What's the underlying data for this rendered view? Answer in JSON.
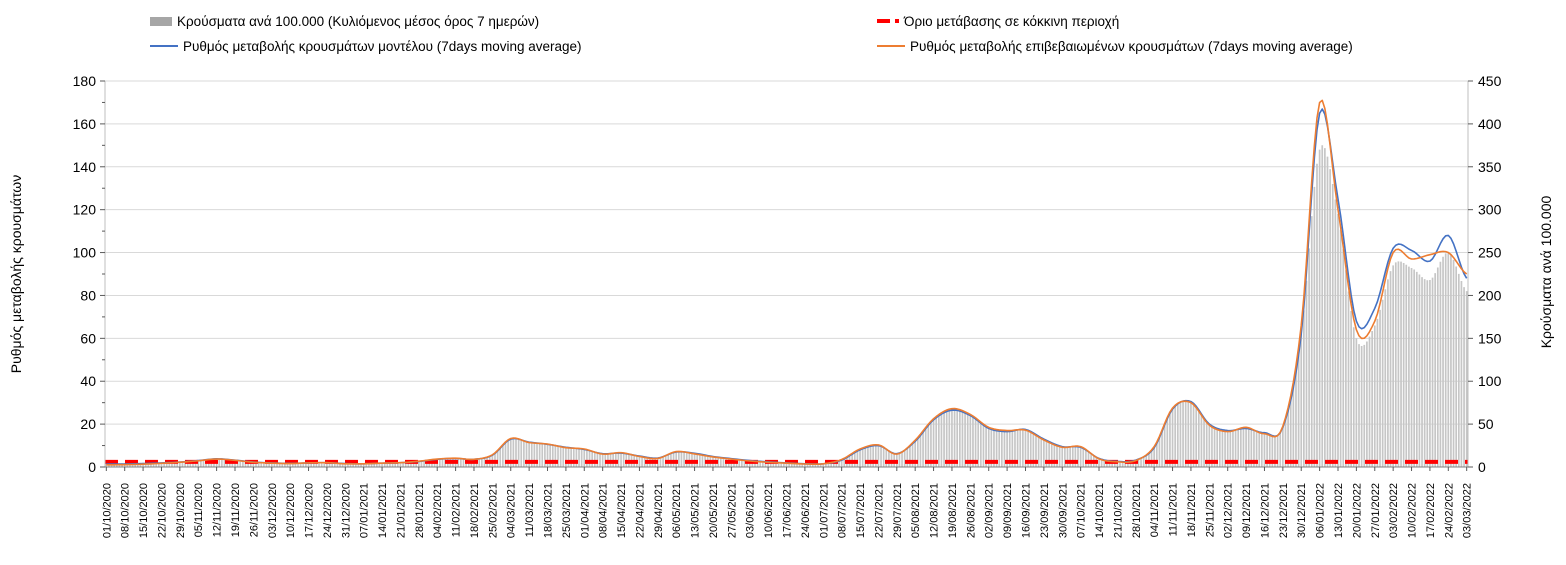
{
  "chart": {
    "legend": [
      {
        "id": "cases",
        "label": "Κρούσματα ανά 100.000 (Κυλιόμενος μέσος όρος 7 ημερών)",
        "swatch": "bar",
        "color": "#a6a6a6"
      },
      {
        "id": "threshold",
        "label": "Όριο μετάβασης σε κόκκινη περιοχή",
        "swatch": "dash",
        "color": "#ff0000"
      },
      {
        "id": "model",
        "label": "Ρυθμός μεταβολής κρουσμάτων μοντέλου (7days moving average)",
        "swatch": "line",
        "color": "#4472c4"
      },
      {
        "id": "confirmed",
        "label": "Ρυθμός μεταβολής επιβεβαιωμένων κρουσμάτων (7days moving average)",
        "swatch": "line",
        "color": "#ed7d31"
      }
    ]
  },
  "chart_data": {
    "type": "combo-bar-line",
    "title": "",
    "x_mode": "daily values, weekly tick labels",
    "grid": "horizontal",
    "left_axis": {
      "title": "Ρυθμός μεταβολής κρουσμάτων",
      "min": 0,
      "max": 180,
      "tick_step": 20,
      "minor_step": 10
    },
    "right_axis": {
      "title": "Κρούσματα ανά 100.000",
      "min": 0,
      "max": 450,
      "tick_step": 50
    },
    "categories": [
      "01/10/2020",
      "08/10/2020",
      "15/10/2020",
      "22/10/2020",
      "29/10/2020",
      "05/11/2020",
      "12/11/2020",
      "19/11/2020",
      "26/11/2020",
      "03/12/2020",
      "10/12/2020",
      "17/12/2020",
      "24/12/2020",
      "31/12/2020",
      "07/01/2021",
      "14/01/2021",
      "21/01/2021",
      "28/01/2021",
      "04/02/2021",
      "11/02/2021",
      "18/02/2021",
      "25/02/2021",
      "04/03/2021",
      "11/03/2021",
      "18/03/2021",
      "25/03/2021",
      "01/04/2021",
      "08/04/2021",
      "15/04/2021",
      "22/04/2021",
      "29/04/2021",
      "06/05/2021",
      "13/05/2021",
      "20/05/2021",
      "27/05/2021",
      "03/06/2021",
      "10/06/2021",
      "17/06/2021",
      "24/06/2021",
      "01/07/2021",
      "08/07/2021",
      "15/07/2021",
      "22/07/2021",
      "29/07/2021",
      "05/08/2021",
      "12/08/2021",
      "19/08/2021",
      "26/08/2021",
      "02/09/2021",
      "09/09/2021",
      "16/09/2021",
      "23/09/2021",
      "30/09/2021",
      "07/10/2021",
      "14/10/2021",
      "21/10/2021",
      "28/10/2021",
      "04/11/2021",
      "11/11/2021",
      "18/11/2021",
      "25/11/2021",
      "02/12/2021",
      "09/12/2021",
      "16/12/2021",
      "23/12/2021",
      "30/12/2021",
      "06/01/2022",
      "13/01/2022",
      "20/01/2022",
      "27/01/2022",
      "03/02/2022",
      "10/02/2022",
      "17/02/2022",
      "24/02/2022",
      "03/03/2022"
    ],
    "series": [
      {
        "name": "Κρούσματα ανά 100.000 (Κυλιόμενος μέσος όρος 7 ημερών)",
        "type": "bar",
        "axis": "right",
        "color": "#c6c6c6",
        "values": [
          4,
          4.5,
          5,
          5.5,
          6.5,
          7.5,
          9,
          8.5,
          6.5,
          5.5,
          5,
          5.5,
          5.5,
          4.5,
          4.5,
          5,
          5.5,
          7,
          9,
          10,
          9,
          14,
          32,
          29,
          27,
          23,
          21,
          16,
          17,
          13,
          11,
          18,
          16,
          12,
          10,
          8,
          6.5,
          5,
          4,
          4,
          8,
          20,
          26,
          16,
          30,
          55,
          66,
          61,
          46,
          43,
          44,
          32,
          24,
          24,
          10,
          7,
          8,
          23,
          68,
          76,
          50,
          43,
          46,
          40,
          47,
          155,
          370,
          295,
          150,
          165,
          235,
          232,
          218,
          250,
          205
        ]
      },
      {
        "name": "Ρυθμός μεταβολής κρουσμάτων μοντέλου (7days moving average)",
        "type": "line",
        "axis": "left",
        "color": "#4472c4",
        "values": [
          1.4,
          1.4,
          1.6,
          1.9,
          2.3,
          3.0,
          3.8,
          3.2,
          2.3,
          1.9,
          1.7,
          1.9,
          2.0,
          1.6,
          1.5,
          1.8,
          2.0,
          2.6,
          3.6,
          4.0,
          3.6,
          5.5,
          13.0,
          11.6,
          10.6,
          9.2,
          8.2,
          6.2,
          6.5,
          5.1,
          4.2,
          7.0,
          6.4,
          4.9,
          3.9,
          3.0,
          2.4,
          1.9,
          1.5,
          1.5,
          3.2,
          8.0,
          10.0,
          6.2,
          12.0,
          22.0,
          26.5,
          24.0,
          18.0,
          16.5,
          17.5,
          13.0,
          9.5,
          9.2,
          4.0,
          2.6,
          3.2,
          9.0,
          27.0,
          30.5,
          20.0,
          17.0,
          18.0,
          16.0,
          18.5,
          62.0,
          165.0,
          125.0,
          68.0,
          74.0,
          102.0,
          101.0,
          96.0,
          108.0,
          88.0
        ]
      },
      {
        "name": "Ρυθμός μεταβολής επιβεβαιωμένων κρουσμάτων (7days moving average)",
        "type": "line",
        "axis": "left",
        "color": "#ed7d31",
        "values": [
          1.0,
          1.1,
          1.3,
          1.7,
          2.2,
          2.9,
          3.7,
          3.1,
          2.2,
          1.8,
          1.6,
          1.9,
          2.0,
          1.5,
          1.5,
          1.8,
          2.0,
          2.7,
          3.7,
          4.1,
          3.6,
          5.7,
          13.3,
          11.4,
          10.7,
          9.0,
          8.4,
          6.0,
          6.7,
          4.9,
          4.0,
          7.2,
          6.1,
          4.7,
          3.7,
          2.8,
          2.2,
          1.8,
          1.4,
          1.5,
          3.5,
          8.4,
          10.3,
          6.0,
          12.5,
          22.5,
          27.2,
          24.5,
          18.5,
          17.0,
          17.2,
          12.6,
          9.2,
          9.5,
          3.8,
          2.4,
          3.0,
          9.5,
          27.5,
          30.0,
          19.5,
          16.5,
          18.5,
          15.5,
          19.0,
          66.0,
          170.0,
          120.0,
          64.0,
          68.0,
          100.0,
          97.0,
          99.0,
          100.0,
          90.0
        ]
      },
      {
        "name": "Όριο μετάβασης σε κόκκινη περιοχή",
        "type": "threshold",
        "axis": "left",
        "color": "#ff0000",
        "value": 2.4
      }
    ]
  }
}
